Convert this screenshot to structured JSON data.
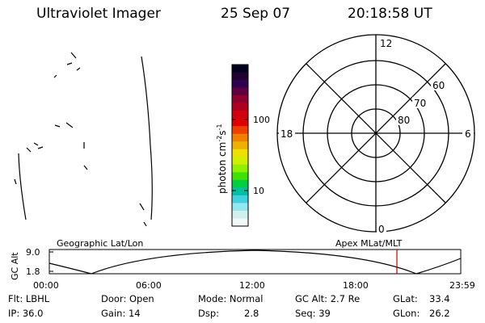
{
  "header": {
    "instrument": "Ultraviolet Imager",
    "date": "25 Sep 07",
    "time": "20:18:58 UT"
  },
  "colorbar": {
    "unit_label": "photon cm",
    "unit_sup1": "-2",
    "unit_mid": "s",
    "unit_sup2": "-1",
    "ticks": [
      "100",
      "10"
    ],
    "colors": [
      "#000020",
      "#200030",
      "#300050",
      "#600040",
      "#900030",
      "#b00020",
      "#d00010",
      "#e00000",
      "#f04000",
      "#f08000",
      "#f0b000",
      "#f0e000",
      "#d0f000",
      "#90f000",
      "#40e000",
      "#00d040",
      "#00c0a0",
      "#40d0e0",
      "#90e8f0",
      "#d0f0f0",
      "#f0f8f8"
    ]
  },
  "polar_plot": {
    "clock_labels": [
      "12",
      "18",
      "6",
      "0"
    ],
    "lat_labels": [
      "60",
      "70",
      "80"
    ]
  },
  "timeline": {
    "title_left": "Geographic Lat/Lon",
    "title_right": "Apex  MLat/MLT",
    "y_axis_label": "GC Alt",
    "y_ticks": [
      "9.0",
      "1.8"
    ],
    "x_ticks": [
      "00:00",
      "06:00",
      "12:00",
      "18:00",
      "23:59"
    ],
    "current_marker_time": "20:19"
  },
  "status": {
    "flt": "Flt: LBHL",
    "ip": "IP: 36.0",
    "door": "Door: Open",
    "gain": "Gain: 14",
    "mode": "Mode: Normal",
    "dsp_label": "Dsp:",
    "dsp_value": "2.8",
    "gc_alt": "GC Alt: 2.7 Re",
    "seq": "Seq: 39",
    "glat_label": "GLat:",
    "glat_value": "33.4",
    "glon_label": "GLon:",
    "glon_value": "26.2"
  }
}
